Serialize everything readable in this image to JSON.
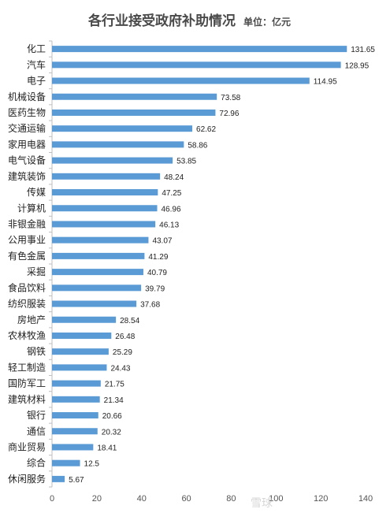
{
  "header": {
    "title": "各行业接受政府补助情况",
    "unit": "单位：亿元"
  },
  "watermark": "雪球",
  "colors": {
    "bar": "#5b9bd5",
    "axis": "#bfbfbf"
  },
  "chart_data": {
    "type": "bar",
    "orientation": "horizontal",
    "title": "各行业接受政府补助情况",
    "unit": "单位：亿元",
    "categories": [
      "化工",
      "汽车",
      "电子",
      "机械设备",
      "医药生物",
      "交通运输",
      "家用电器",
      "电气设备",
      "建筑装饰",
      "传媒",
      "计算机",
      "非银金融",
      "公用事业",
      "有色金属",
      "采掘",
      "食品饮料",
      "纺织服装",
      "房地产",
      "农林牧渔",
      "钢铁",
      "轻工制造",
      "国防军工",
      "建筑材料",
      "银行",
      "通信",
      "商业贸易",
      "综合",
      "休闲服务"
    ],
    "values": [
      131.65,
      128.95,
      114.95,
      73.58,
      72.96,
      62.62,
      58.86,
      53.85,
      48.24,
      47.25,
      46.96,
      46.13,
      43.07,
      41.29,
      40.79,
      39.79,
      37.68,
      28.54,
      26.48,
      25.29,
      24.43,
      21.75,
      21.34,
      20.66,
      20.32,
      18.41,
      12.5,
      5.67
    ],
    "value_labels": [
      "131.65",
      "128.95",
      "114.95",
      "73.58",
      "72.96",
      "62.62",
      "58.86",
      "53.85",
      "48.24",
      "47.25",
      "46.96",
      "46.13",
      "43.07",
      "41.29",
      "40.79",
      "39.79",
      "37.68",
      "28.54",
      "26.48",
      "25.29",
      "24.43",
      "21.75",
      "21.34",
      "20.66",
      "20.32",
      "18.41",
      "12.5",
      "5.67"
    ],
    "xlim": [
      0,
      140
    ],
    "xticks": [
      0,
      20,
      40,
      60,
      80,
      100,
      120,
      140
    ],
    "xtick_labels": [
      "0",
      "20",
      "40",
      "60",
      "80",
      "100",
      "120",
      "140"
    ],
    "grid": false,
    "legend": "none"
  }
}
